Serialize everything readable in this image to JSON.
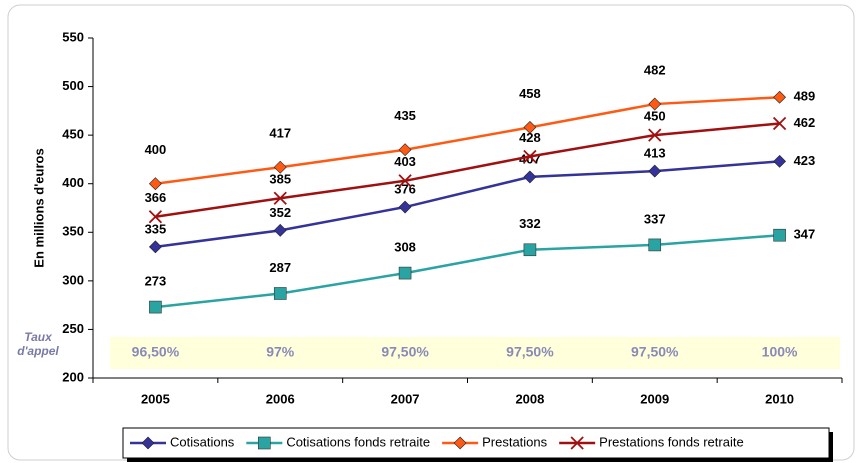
{
  "chart_data": {
    "type": "line",
    "y_label": "En millions d'euros",
    "categories": [
      "2005",
      "2006",
      "2007",
      "2008",
      "2009",
      "2010"
    ],
    "series": [
      {
        "name": "Cotisations",
        "color": "#333399",
        "marker": "diamond",
        "values": [
          335,
          352,
          376,
          407,
          413,
          423
        ]
      },
      {
        "name": "Cotisations fonds retraite",
        "color": "#2aa3a3",
        "marker": "square",
        "values": [
          273,
          287,
          308,
          332,
          337,
          347
        ]
      },
      {
        "name": "Prestations",
        "color": "#ff5a14",
        "marker": "diamond",
        "values": [
          400,
          417,
          435,
          458,
          482,
          489
        ]
      },
      {
        "name": "Prestations fonds retraite",
        "color": "#a01010",
        "marker": "x",
        "values": [
          366,
          385,
          403,
          428,
          450,
          462
        ]
      }
    ],
    "ylim": [
      200,
      550
    ],
    "yticks": [
      200,
      250,
      300,
      350,
      400,
      450,
      500,
      550
    ],
    "grid": false,
    "legend": "bottom",
    "call_rate_label": "Taux d'appel",
    "call_rates": [
      "96,50%",
      "97%",
      "97,50%",
      "97,50%",
      "97,50%",
      "100%"
    ]
  }
}
